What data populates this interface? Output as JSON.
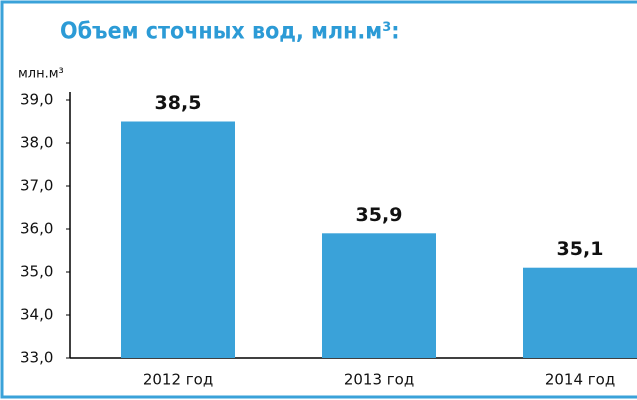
{
  "chart_data": {
    "type": "bar",
    "title": "Объем сточных вод, млн.м³:",
    "y_label": "млн.м³",
    "categories": [
      "2012 год",
      "2013 год",
      "2014 год"
    ],
    "values": [
      38.5,
      35.9,
      35.1
    ],
    "value_labels": [
      "38,5",
      "35,9",
      "35,1"
    ],
    "color": "#3aa2d9",
    "ylim": [
      33,
      39
    ],
    "yticks": [
      {
        "value": 33,
        "label": "33,0"
      },
      {
        "value": 34,
        "label": "34,0"
      },
      {
        "value": 35,
        "label": "35,0"
      },
      {
        "value": 36,
        "label": "36,0"
      },
      {
        "value": 37,
        "label": "37,0"
      },
      {
        "value": 38,
        "label": "38,0"
      },
      {
        "value": 39,
        "label": "39,0"
      }
    ],
    "grid": false
  }
}
